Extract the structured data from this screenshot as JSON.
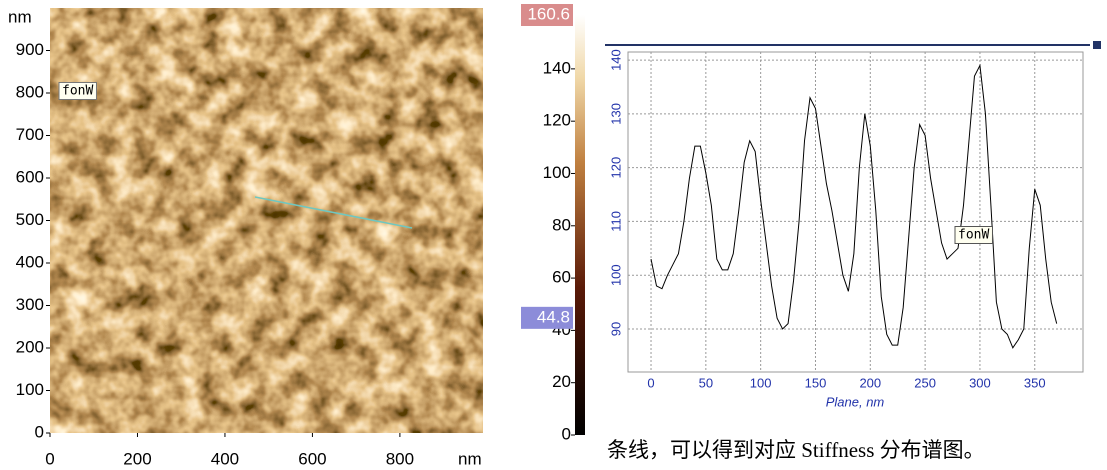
{
  "chart_data": [
    {
      "type": "image",
      "x_label": "nm",
      "y_label": "nm",
      "xlim": [
        0,
        990
      ],
      "ylim": [
        0,
        1000
      ],
      "xticks": [
        0,
        200,
        400,
        600,
        800
      ],
      "yticks": [
        0,
        100,
        200,
        300,
        400,
        500,
        600,
        700,
        800,
        900
      ],
      "annotation": "fonW"
    },
    {
      "type": "colorbar",
      "ylim": [
        0,
        160.6
      ],
      "yticks": [
        0,
        20,
        40,
        60,
        80,
        100,
        120,
        140
      ],
      "max_marker": 160.6,
      "min_marker": 44.8
    },
    {
      "type": "line",
      "x_label": "Plane, nm",
      "grid": true,
      "annotation": "fonW",
      "xlim": [
        -21,
        394
      ],
      "ylim": [
        82,
        141.5
      ],
      "xticks": [
        0,
        50,
        100,
        150,
        200,
        250,
        300,
        350
      ],
      "yticks": [
        90,
        100,
        110,
        120,
        130,
        140
      ],
      "x": [
        0,
        5,
        10,
        15,
        20,
        25,
        30,
        35,
        40,
        45,
        50,
        55,
        60,
        65,
        70,
        75,
        80,
        85,
        90,
        95,
        100,
        105,
        110,
        115,
        120,
        125,
        130,
        135,
        140,
        145,
        150,
        155,
        160,
        165,
        170,
        175,
        180,
        185,
        190,
        195,
        200,
        205,
        210,
        215,
        220,
        225,
        230,
        235,
        240,
        245,
        250,
        255,
        260,
        265,
        270,
        275,
        280,
        285,
        290,
        295,
        300,
        305,
        310,
        315,
        320,
        325,
        330,
        335,
        340,
        345,
        350,
        355,
        360,
        365,
        370
      ],
      "series": [
        {
          "color": "#000000",
          "values": [
            103,
            98,
            97.5,
            100,
            102,
            104,
            110,
            118,
            124,
            124,
            119,
            113,
            103,
            101,
            101,
            104,
            112,
            121,
            125,
            123,
            114,
            106,
            98,
            92,
            90,
            91,
            99,
            110,
            125,
            133,
            131,
            124,
            117,
            112,
            106,
            100,
            97,
            104,
            120,
            130,
            124,
            112,
            96,
            89,
            87,
            87,
            94,
            107,
            120,
            128,
            126,
            118,
            112,
            106,
            103,
            104,
            105,
            113,
            125,
            137,
            139,
            130,
            113,
            95,
            90,
            89,
            86.5,
            88,
            90,
            105,
            116,
            113,
            103,
            95,
            91
          ]
        }
      ]
    }
  ],
  "caption": "条线，可以得到对应 Stiffness 分布谱图。"
}
